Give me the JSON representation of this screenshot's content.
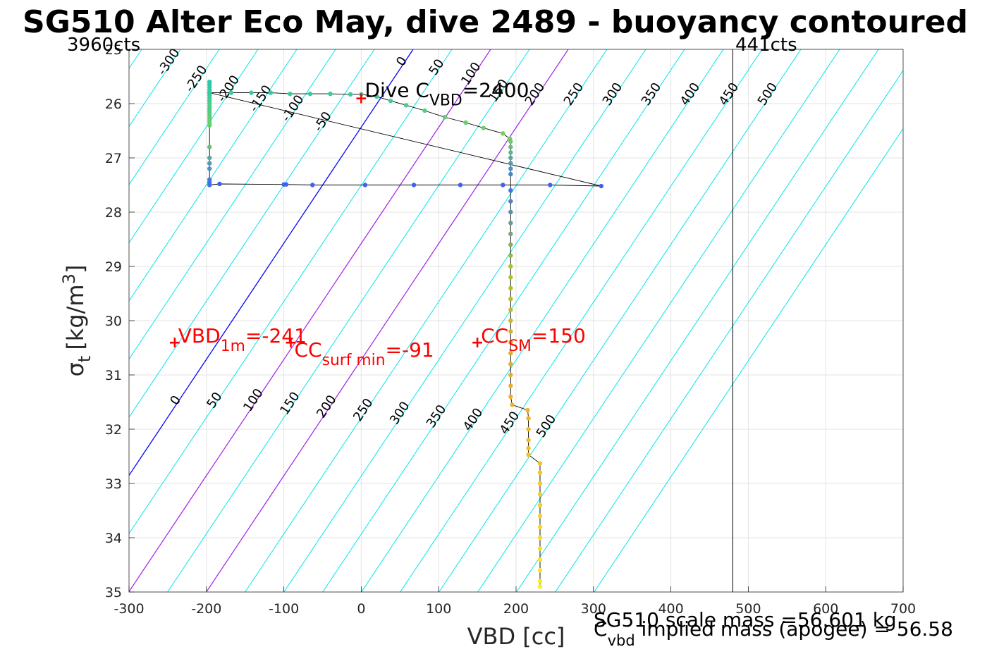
{
  "chart_data": {
    "type": "scatter",
    "title": "SG510 Alter Eco May, dive 2489 - buoyancy contoured",
    "xlabel": "VBD [cc]",
    "ylabel_main": "σ",
    "ylabel_sub": "t",
    "ylabel_units": "[kg/m",
    "ylabel_sup": "3",
    "ylabel_close": "]",
    "xlim": [
      -300,
      700
    ],
    "ylim": [
      25,
      35
    ],
    "y_reversed": true,
    "grid": true,
    "xticks": [
      "-300",
      "-200",
      "-100",
      "0",
      "100",
      "200",
      "300",
      "400",
      "500",
      "600",
      "700"
    ],
    "yticks": [
      "25",
      "26",
      "27",
      "28",
      "29",
      "30",
      "31",
      "32",
      "33",
      "34",
      "35"
    ],
    "top_left_label": "3960cts",
    "top_right_label": "441cts",
    "cts_line_x": 480,
    "contours_upper": {
      "color": "#00e5ee",
      "labels": [
        "-300",
        "-250",
        "-200",
        "-150",
        "-100",
        "-50",
        "0",
        "50",
        "100",
        "150",
        "200",
        "250",
        "300",
        "350",
        "400",
        "450",
        "500"
      ]
    },
    "contours_lower": {
      "labels": [
        "0",
        "50",
        "100",
        "150",
        "200",
        "250",
        "300",
        "350",
        "400",
        "450",
        "500"
      ]
    },
    "zero_line_color": "#0000ff",
    "magenta_color": "#a020f0",
    "dive_c_vbd": {
      "pre": "Dive C",
      "sub": "VBD",
      "post": "=2400",
      "x": 0,
      "y": 25.9
    },
    "annotations": [
      {
        "pre": "VBD",
        "sub": "1m",
        "post": "=-241",
        "x": -241,
        "y": 30.4
      },
      {
        "pre": "CC",
        "sub": "surf min",
        "post": "=-91",
        "x": -91,
        "y": 30.4
      },
      {
        "pre": "CC",
        "sub": "SM",
        "post": "=150",
        "x": 150,
        "y": 30.4
      }
    ],
    "annotation_color": "#ff0000",
    "points": [
      [
        -196,
        25.6
      ],
      [
        -196,
        25.65
      ],
      [
        -196,
        25.7
      ],
      [
        -196,
        25.75
      ],
      [
        -196,
        25.8
      ],
      [
        -196,
        25.85
      ],
      [
        -196,
        25.9
      ],
      [
        -196,
        25.95
      ],
      [
        -196,
        26.0
      ],
      [
        -196,
        26.05
      ],
      [
        -196,
        26.1
      ],
      [
        -196,
        26.15
      ],
      [
        -196,
        26.2
      ],
      [
        -196,
        26.25
      ],
      [
        -196,
        26.3
      ],
      [
        -196,
        26.35
      ],
      [
        -196,
        26.4
      ],
      [
        -196,
        26.8
      ],
      [
        -196,
        27.0
      ],
      [
        -196,
        27.1
      ],
      [
        -196,
        27.2
      ],
      [
        -196,
        27.4
      ],
      [
        -196,
        27.45
      ],
      [
        -196,
        27.5
      ],
      [
        -183,
        27.48
      ],
      [
        -100,
        27.49
      ],
      [
        -97,
        27.49
      ],
      [
        -63,
        27.5
      ],
      [
        5,
        27.5
      ],
      [
        68,
        27.5
      ],
      [
        128,
        27.5
      ],
      [
        183,
        27.5
      ],
      [
        244,
        27.5
      ],
      [
        310,
        27.52
      ],
      [
        -196,
        25.8
      ],
      [
        -168,
        25.8
      ],
      [
        -142,
        25.8
      ],
      [
        -117,
        25.8
      ],
      [
        -92,
        25.82
      ],
      [
        -66,
        25.82
      ],
      [
        -40,
        25.82
      ],
      [
        -14,
        25.83
      ],
      [
        0,
        25.83
      ],
      [
        20,
        25.87
      ],
      [
        38,
        25.95
      ],
      [
        58,
        26.03
      ],
      [
        82,
        26.13
      ],
      [
        108,
        26.25
      ],
      [
        135,
        26.35
      ],
      [
        158,
        26.45
      ],
      [
        183,
        26.55
      ],
      [
        192,
        26.65
      ],
      [
        193,
        26.7
      ],
      [
        193,
        26.8
      ],
      [
        193,
        26.9
      ],
      [
        193,
        27.0
      ],
      [
        193,
        27.1
      ],
      [
        193,
        27.2
      ],
      [
        193,
        27.3
      ],
      [
        193,
        27.6
      ],
      [
        193,
        27.8
      ],
      [
        193,
        28.0
      ],
      [
        193,
        28.2
      ],
      [
        193,
        28.4
      ],
      [
        193,
        28.6
      ],
      [
        193,
        28.8
      ],
      [
        193,
        29.0
      ],
      [
        193,
        29.2
      ],
      [
        193,
        29.4
      ],
      [
        193,
        29.6
      ],
      [
        193,
        29.8
      ],
      [
        193,
        30.0
      ],
      [
        193,
        30.2
      ],
      [
        193,
        30.4
      ],
      [
        193,
        30.6
      ],
      [
        193,
        30.8
      ],
      [
        193,
        31.0
      ],
      [
        193,
        31.2
      ],
      [
        193,
        31.4
      ],
      [
        195,
        31.55
      ],
      [
        215,
        31.65
      ],
      [
        216,
        31.8
      ],
      [
        216,
        32.0
      ],
      [
        216,
        32.2
      ],
      [
        216,
        32.35
      ],
      [
        216,
        32.47
      ],
      [
        231,
        32.63
      ],
      [
        231,
        32.8
      ],
      [
        231,
        33.0
      ],
      [
        231,
        33.2
      ],
      [
        231,
        33.4
      ],
      [
        231,
        33.6
      ],
      [
        231,
        33.8
      ],
      [
        231,
        34.0
      ],
      [
        231,
        34.2
      ],
      [
        231,
        34.4
      ],
      [
        231,
        34.6
      ],
      [
        231,
        34.8
      ],
      [
        231,
        34.9
      ]
    ],
    "footer_line1": "SG510 scale mass =56.601 kg",
    "footer_line2_pre": "C",
    "footer_line2_sub": "vbd",
    "footer_line2_post": " implied mass (apogee) = 56.58"
  }
}
